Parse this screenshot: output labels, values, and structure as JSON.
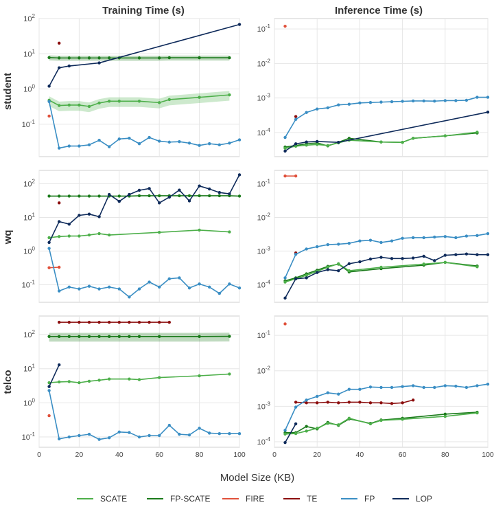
{
  "figure": {
    "col_titles": [
      "Training Time (s)",
      "Inference Time (s)"
    ],
    "row_labels": [
      "student",
      "wq",
      "telco"
    ],
    "xlabel": "Model Size (KB)"
  },
  "legend": [
    {
      "name": "SCATE",
      "color": "#4daf4a"
    },
    {
      "name": "FP-SCATE",
      "color": "#1a7a1a"
    },
    {
      "name": "FIRE",
      "color": "#e0503a"
    },
    {
      "name": "TE",
      "color": "#8b0d0d"
    },
    {
      "name": "FP",
      "color": "#3a8ec4"
    },
    {
      "name": "LOP",
      "color": "#0e2a5a"
    }
  ],
  "chart_data": [
    {
      "type": "line",
      "dataset": "student",
      "metric": "Training Time (s)",
      "xlim": [
        0,
        100
      ],
      "ylim": [
        0.012,
        100
      ],
      "yscale": "log",
      "grid": true,
      "x_ticks": [
        0,
        20,
        40,
        60,
        80,
        100
      ],
      "y_ticks": [
        "10^-1",
        "10^0",
        "10^1",
        "10^2"
      ],
      "series": [
        {
          "name": "SCATE",
          "x": [
            5,
            10,
            15,
            20,
            25,
            30,
            35,
            40,
            50,
            60,
            65,
            80,
            95
          ],
          "y": [
            0.48,
            0.34,
            0.35,
            0.35,
            0.32,
            0.4,
            0.45,
            0.45,
            0.45,
            0.41,
            0.5,
            0.58,
            0.68
          ],
          "band": [
            0.3,
            0.6
          ]
        },
        {
          "name": "FP-SCATE",
          "x": [
            5,
            10,
            15,
            20,
            25,
            30,
            35,
            40,
            50,
            60,
            65,
            80,
            95
          ],
          "y": [
            7.8,
            7.6,
            7.6,
            7.6,
            7.6,
            7.6,
            7.6,
            7.6,
            7.6,
            7.6,
            7.7,
            7.7,
            7.7
          ],
          "band": [
            6.3,
            9.3
          ]
        },
        {
          "name": "FIRE",
          "x": [
            5
          ],
          "y": [
            0.17
          ]
        },
        {
          "name": "TE",
          "x": [
            10
          ],
          "y": [
            20
          ]
        },
        {
          "name": "FP",
          "x": [
            5,
            10,
            15,
            20,
            25,
            30,
            35,
            40,
            45,
            50,
            55,
            60,
            65,
            70,
            75,
            80,
            85,
            90,
            95,
            100
          ],
          "y": [
            0.44,
            0.021,
            0.024,
            0.024,
            0.026,
            0.035,
            0.023,
            0.038,
            0.04,
            0.028,
            0.042,
            0.033,
            0.031,
            0.032,
            0.029,
            0.025,
            0.028,
            0.026,
            0.029,
            0.036
          ],
          "band": [
            0.0,
            0.0
          ]
        },
        {
          "name": "LOP",
          "x": [
            5,
            10,
            15,
            30,
            100
          ],
          "y": [
            1.2,
            4.0,
            4.5,
            5.5,
            68
          ]
        }
      ]
    },
    {
      "type": "line",
      "dataset": "student",
      "metric": "Inference Time (s)",
      "xlim": [
        0,
        100
      ],
      "ylim": [
        2e-05,
        0.2
      ],
      "yscale": "log",
      "grid": true,
      "x_ticks": [
        0,
        20,
        40,
        60,
        80,
        100
      ],
      "y_ticks": [
        "10^-4",
        "10^-3",
        "10^-2",
        "10^-1"
      ],
      "series": [
        {
          "name": "SCATE",
          "x": [
            5,
            10,
            15,
            20,
            25,
            30,
            35,
            50,
            60,
            65,
            80,
            95
          ],
          "y": [
            3.5e-05,
            4e-05,
            4.3e-05,
            4.5e-05,
            4.2e-05,
            5e-05,
            6e-05,
            5.3e-05,
            5.2e-05,
            6.8e-05,
            8e-05,
            0.000102
          ]
        },
        {
          "name": "FP-SCATE",
          "x": [
            5,
            10,
            15,
            20,
            25,
            30,
            35,
            50,
            60,
            65,
            80,
            95
          ],
          "y": [
            3.8e-05,
            4.2e-05,
            4.7e-05,
            5e-05,
            4.1e-05,
            5.2e-05,
            6.8e-05,
            5.3e-05,
            5.2e-05,
            6.8e-05,
            8e-05,
            9.7e-05
          ]
        },
        {
          "name": "FIRE",
          "x": [
            5
          ],
          "y": [
            0.12
          ]
        },
        {
          "name": "TE",
          "x": [
            10
          ],
          "y": [
            0.00029
          ]
        },
        {
          "name": "FP",
          "x": [
            5,
            10,
            15,
            20,
            25,
            30,
            35,
            40,
            45,
            50,
            55,
            60,
            65,
            70,
            75,
            80,
            85,
            90,
            95,
            100
          ],
          "y": [
            7.2e-05,
            0.00024,
            0.00038,
            0.00048,
            0.00052,
            0.00063,
            0.00066,
            0.00072,
            0.00074,
            0.00076,
            0.00078,
            0.0008,
            0.00082,
            0.00082,
            0.00081,
            0.00084,
            0.00084,
            0.00086,
            0.00105,
            0.00105
          ]
        },
        {
          "name": "LOP",
          "x": [
            5,
            10,
            15,
            20,
            30,
            100
          ],
          "y": [
            2.9e-05,
            4.7e-05,
            5.3e-05,
            5.5e-05,
            5.2e-05,
            0.00039
          ]
        }
      ]
    },
    {
      "type": "line",
      "dataset": "wq",
      "metric": "Training Time (s)",
      "xlim": [
        0,
        100
      ],
      "ylim": [
        0.03,
        250
      ],
      "yscale": "log",
      "grid": true,
      "x_ticks": [
        0,
        20,
        40,
        60,
        80,
        100
      ],
      "y_ticks": [
        "10^-1",
        "10^0",
        "10^1",
        "10^2"
      ],
      "series": [
        {
          "name": "SCATE",
          "x": [
            5,
            10,
            15,
            20,
            25,
            30,
            35,
            60,
            80,
            95
          ],
          "y": [
            2.5,
            2.7,
            2.8,
            2.8,
            3.0,
            3.3,
            3.0,
            3.6,
            4.2,
            3.7
          ]
        },
        {
          "name": "FP-SCATE",
          "x": [
            5,
            10,
            15,
            20,
            25,
            30,
            35,
            40,
            45,
            50,
            55,
            60,
            65,
            70,
            75,
            80,
            85,
            90,
            95,
            100
          ],
          "y": [
            43,
            43,
            43,
            43,
            43,
            43,
            43,
            43,
            43,
            44,
            44,
            44,
            44,
            44,
            44,
            44,
            44,
            44,
            44,
            43
          ]
        },
        {
          "name": "FIRE",
          "x": [
            5,
            10
          ],
          "y": [
            0.32,
            0.33
          ]
        },
        {
          "name": "TE",
          "x": [
            10
          ],
          "y": [
            27
          ]
        },
        {
          "name": "FP",
          "x": [
            5,
            10,
            15,
            20,
            25,
            30,
            35,
            40,
            45,
            50,
            55,
            60,
            65,
            70,
            75,
            80,
            85,
            90,
            95,
            100
          ],
          "y": [
            1.2,
            0.065,
            0.085,
            0.075,
            0.09,
            0.075,
            0.085,
            0.075,
            0.043,
            0.075,
            0.12,
            0.085,
            0.15,
            0.16,
            0.08,
            0.105,
            0.085,
            0.055,
            0.105,
            0.08
          ]
        },
        {
          "name": "LOP",
          "x": [
            5,
            10,
            15,
            20,
            25,
            30,
            35,
            40,
            45,
            50,
            55,
            60,
            65,
            70,
            75,
            80,
            85,
            90,
            95,
            100
          ],
          "y": [
            1.8,
            7.5,
            6.3,
            11.5,
            12.5,
            10.5,
            48,
            30,
            48,
            64,
            72,
            27,
            40,
            65,
            31,
            86,
            70,
            55,
            50,
            185
          ]
        }
      ]
    },
    {
      "type": "line",
      "dataset": "wq",
      "metric": "Inference Time (s)",
      "xlim": [
        0,
        100
      ],
      "ylim": [
        3e-05,
        0.25
      ],
      "yscale": "log",
      "grid": true,
      "x_ticks": [
        0,
        20,
        40,
        60,
        80,
        100
      ],
      "y_ticks": [
        "10^-4",
        "10^-3",
        "10^-2",
        "10^-1"
      ],
      "series": [
        {
          "name": "SCATE",
          "x": [
            5,
            10,
            15,
            20,
            25,
            30,
            35,
            50,
            70,
            80,
            95
          ],
          "y": [
            0.00012,
            0.00015,
            0.00019,
            0.00025,
            0.00033,
            0.00042,
            0.00026,
            0.00033,
            0.00041,
            0.00046,
            0.00034
          ]
        },
        {
          "name": "FP-SCATE",
          "x": [
            5,
            10,
            15,
            20,
            25,
            30,
            35,
            50,
            70,
            80,
            95
          ],
          "y": [
            0.00013,
            0.00016,
            0.00021,
            0.00027,
            0.00035,
            0.00041,
            0.00024,
            0.0003,
            0.00038,
            0.00046,
            0.00036
          ]
        },
        {
          "name": "FIRE",
          "x": [
            5,
            10
          ],
          "y": [
            0.17,
            0.17
          ]
        },
        {
          "name": "TE",
          "x": [
            10
          ],
          "y": [
            0.00088
          ]
        },
        {
          "name": "FP",
          "x": [
            5,
            10,
            15,
            20,
            25,
            30,
            35,
            40,
            45,
            50,
            55,
            60,
            65,
            70,
            75,
            80,
            85,
            90,
            95,
            100
          ],
          "y": [
            0.00016,
            0.0008,
            0.00115,
            0.00135,
            0.00155,
            0.0016,
            0.0017,
            0.002,
            0.0021,
            0.0018,
            0.002,
            0.0024,
            0.0025,
            0.0025,
            0.0026,
            0.0027,
            0.0025,
            0.0028,
            0.0029,
            0.0033
          ]
        },
        {
          "name": "LOP",
          "x": [
            5,
            10,
            15,
            20,
            25,
            30,
            35,
            40,
            45,
            50,
            55,
            60,
            65,
            70,
            75,
            80,
            85,
            90,
            95,
            100
          ],
          "y": [
            4e-05,
            0.00015,
            0.00016,
            0.00023,
            0.00028,
            0.00026,
            0.00042,
            0.00048,
            0.00058,
            0.00065,
            0.0006,
            0.0006,
            0.00062,
            0.0007,
            0.00052,
            0.00075,
            0.00078,
            0.00082,
            0.00078,
            0.00078
          ]
        }
      ]
    },
    {
      "type": "line",
      "dataset": "telco",
      "metric": "Training Time (s)",
      "xlim": [
        0,
        100
      ],
      "ylim": [
        0.05,
        350
      ],
      "yscale": "log",
      "grid": true,
      "x_ticks": [
        0,
        20,
        40,
        60,
        80,
        100
      ],
      "y_ticks": [
        "10^-1",
        "10^0",
        "10^1",
        "10^2"
      ],
      "series": [
        {
          "name": "SCATE",
          "x": [
            5,
            10,
            15,
            20,
            25,
            30,
            35,
            45,
            50,
            60,
            80,
            95
          ],
          "y": [
            3.9,
            4.1,
            4.2,
            3.9,
            4.3,
            4.6,
            5.0,
            5.0,
            4.8,
            5.5,
            6.2,
            7.0
          ]
        },
        {
          "name": "FP-SCATE",
          "x": [
            5,
            10,
            15,
            20,
            25,
            30,
            35,
            40,
            45,
            50,
            60,
            80,
            95
          ],
          "y": [
            88,
            88,
            88,
            88,
            88,
            88,
            88,
            88,
            88,
            88,
            88,
            88,
            89
          ],
          "band": [
            60,
            115
          ]
        },
        {
          "name": "FIRE",
          "x": [
            5
          ],
          "y": [
            0.42
          ]
        },
        {
          "name": "TE",
          "x": [
            10,
            15,
            20,
            25,
            30,
            35,
            40,
            45,
            50,
            55,
            60,
            65
          ],
          "y": [
            230,
            230,
            230,
            230,
            230,
            230,
            230,
            230,
            230,
            230,
            230,
            230
          ]
        },
        {
          "name": "FP",
          "x": [
            5,
            10,
            15,
            20,
            25,
            30,
            35,
            40,
            45,
            50,
            55,
            60,
            65,
            70,
            75,
            80,
            85,
            90,
            95,
            100
          ],
          "y": [
            2.3,
            0.088,
            0.1,
            0.11,
            0.12,
            0.085,
            0.095,
            0.14,
            0.135,
            0.1,
            0.11,
            0.11,
            0.22,
            0.12,
            0.115,
            0.18,
            0.13,
            0.125,
            0.125,
            0.125
          ]
        },
        {
          "name": "LOP",
          "x": [
            5,
            10
          ],
          "y": [
            3.0,
            13
          ]
        }
      ]
    },
    {
      "type": "line",
      "dataset": "telco",
      "metric": "Inference Time (s)",
      "xlim": [
        0,
        100
      ],
      "ylim": [
        7e-05,
        0.35
      ],
      "yscale": "log",
      "grid": true,
      "x_ticks": [
        0,
        20,
        40,
        60,
        80,
        100
      ],
      "y_ticks": [
        "10^-4",
        "10^-3",
        "10^-2",
        "10^-1"
      ],
      "series": [
        {
          "name": "SCATE",
          "x": [
            5,
            10,
            15,
            20,
            25,
            30,
            35,
            45,
            50,
            60,
            80,
            95
          ],
          "y": [
            0.000165,
            0.00017,
            0.0002,
            0.00024,
            0.00033,
            0.0003,
            0.00046,
            0.00032,
            0.0004,
            0.00043,
            0.00052,
            0.00065
          ]
        },
        {
          "name": "FP-SCATE",
          "x": [
            5,
            10,
            15,
            20,
            25,
            30,
            35,
            45,
            50,
            60,
            80,
            95
          ],
          "y": [
            0.00018,
            0.00018,
            0.00027,
            0.00023,
            0.00035,
            0.00029,
            0.00044,
            0.00033,
            0.00041,
            0.00046,
            0.0006,
            0.00068
          ]
        },
        {
          "name": "FIRE",
          "x": [
            5
          ],
          "y": [
            0.21
          ]
        },
        {
          "name": "TE",
          "x": [
            10,
            15,
            20,
            25,
            30,
            35,
            40,
            45,
            50,
            55,
            60,
            65
          ],
          "y": [
            0.0013,
            0.00125,
            0.00125,
            0.0013,
            0.00125,
            0.0013,
            0.0013,
            0.00125,
            0.00125,
            0.0012,
            0.00125,
            0.0015
          ]
        },
        {
          "name": "FP",
          "x": [
            5,
            10,
            15,
            20,
            25,
            30,
            35,
            40,
            45,
            50,
            55,
            60,
            65,
            70,
            75,
            80,
            85,
            90,
            95,
            100
          ],
          "y": [
            0.00021,
            0.00095,
            0.0015,
            0.0019,
            0.0024,
            0.0022,
            0.003,
            0.003,
            0.0035,
            0.0034,
            0.0034,
            0.0036,
            0.0038,
            0.0034,
            0.0034,
            0.0038,
            0.0037,
            0.0034,
            0.0038,
            0.0042
          ]
        },
        {
          "name": "LOP",
          "x": [
            5,
            10
          ],
          "y": [
            9.5e-05,
            0.00032
          ]
        }
      ]
    }
  ]
}
